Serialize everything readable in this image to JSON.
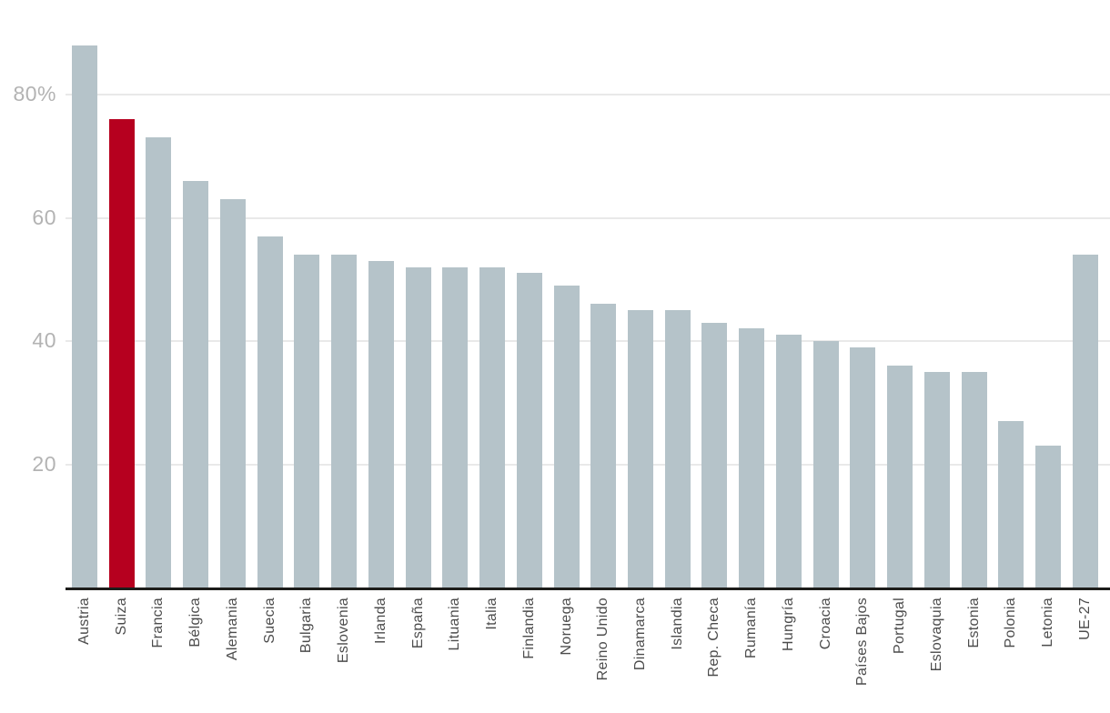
{
  "chart_data": {
    "type": "bar",
    "title": "",
    "xlabel": "",
    "ylabel": "",
    "categories": [
      "Austria",
      "Suiza",
      "Francia",
      "Bélgica",
      "Alemania",
      "Suecia",
      "Bulgaria",
      "Eslovenia",
      "Irlanda",
      "España",
      "Lituania",
      "Italia",
      "Finlandia",
      "Noruega",
      "Reino Unido",
      "Dinamarca",
      "Islandia",
      "Rep. Checa",
      "Rumanía",
      "Hungría",
      "Croacia",
      "Países Bajos",
      "Portugal",
      "Eslovaquia",
      "Estonia",
      "Polonia",
      "Letonia",
      "UE-27"
    ],
    "values": [
      88,
      76,
      73,
      66,
      63,
      57,
      54,
      54,
      53,
      52,
      52,
      52,
      51,
      49,
      46,
      45,
      45,
      43,
      42,
      41,
      40,
      39,
      36,
      35,
      35,
      27,
      23,
      54
    ],
    "unit": "%",
    "highlight_category": "Suiza",
    "highlight_index": 1,
    "y_ticks": [
      {
        "label": "80%",
        "value": 80
      },
      {
        "label": "60",
        "value": 60
      },
      {
        "label": "40",
        "value": 40
      },
      {
        "label": "20",
        "value": 20
      }
    ],
    "ylim": [
      0,
      95
    ],
    "grid": true,
    "legend": "none",
    "colors": {
      "bar": "#b5c3c9",
      "highlight": "#b6001f",
      "gridline": "#e9e9e9",
      "axis_line": "#1d1d1b",
      "tick_label": "#b3b3b3",
      "category_label": "#4c4c4c"
    }
  }
}
